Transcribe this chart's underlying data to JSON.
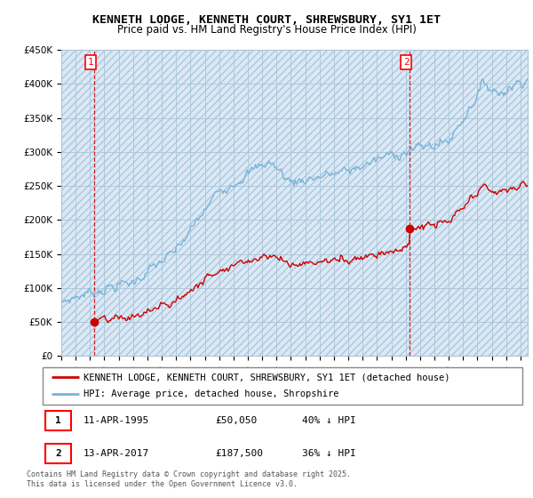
{
  "title": "KENNETH LODGE, KENNETH COURT, SHREWSBURY, SY1 1ET",
  "subtitle": "Price paid vs. HM Land Registry's House Price Index (HPI)",
  "ylim": [
    0,
    450000
  ],
  "yticks": [
    0,
    50000,
    100000,
    150000,
    200000,
    250000,
    300000,
    350000,
    400000,
    450000
  ],
  "ytick_labels": [
    "£0",
    "£50K",
    "£100K",
    "£150K",
    "£200K",
    "£250K",
    "£300K",
    "£350K",
    "£400K",
    "£450K"
  ],
  "sale1_year": 1995.28,
  "sale1_price": 50050,
  "sale1_label": "1",
  "sale2_year": 2017.28,
  "sale2_price": 187500,
  "sale2_label": "2",
  "hpi_color": "#7ab4d8",
  "price_color": "#cc0000",
  "vline_color": "#cc0000",
  "background_color": "#ffffff",
  "bg_fill_color": "#dce9f5",
  "grid_color": "#aac4d8",
  "legend_label_price": "KENNETH LODGE, KENNETH COURT, SHREWSBURY, SY1 1ET (detached house)",
  "legend_label_hpi": "HPI: Average price, detached house, Shropshire",
  "annotation1": [
    "1",
    "11-APR-1995",
    "£50,050",
    "40% ↓ HPI"
  ],
  "annotation2": [
    "2",
    "13-APR-2017",
    "£187,500",
    "36% ↓ HPI"
  ],
  "footer": "Contains HM Land Registry data © Crown copyright and database right 2025.\nThis data is licensed under the Open Government Licence v3.0.",
  "title_fontsize": 9.5,
  "subtitle_fontsize": 8.5,
  "tick_fontsize": 7.5,
  "legend_fontsize": 8
}
